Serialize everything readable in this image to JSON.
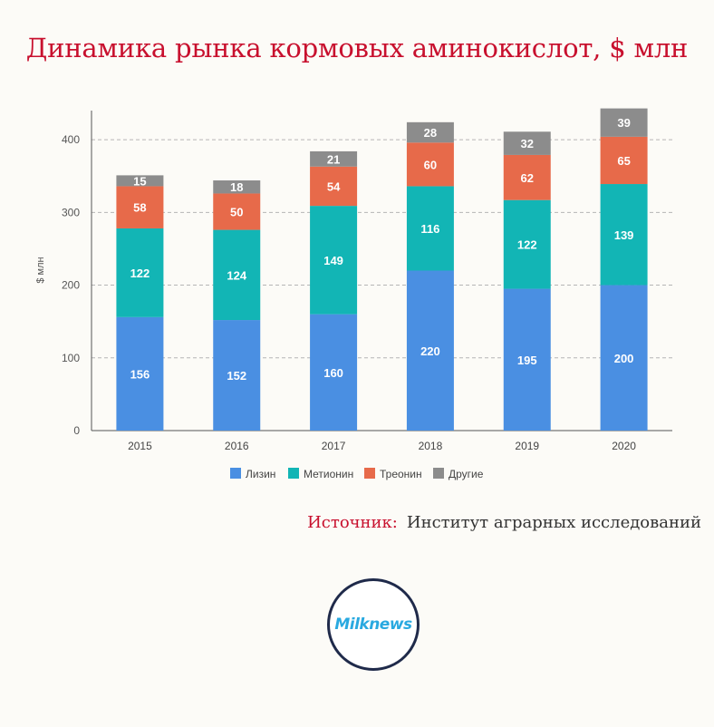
{
  "chart_data": {
    "type": "bar",
    "stacked": true,
    "title": "Динамика рынка кормовых аминокислот, $ млн",
    "ylabel": "$ млн",
    "xlabel": "",
    "ylim": [
      0,
      440
    ],
    "yticks": [
      0,
      100,
      200,
      300,
      400
    ],
    "grid": true,
    "legend_position": "bottom",
    "categories": [
      "2015",
      "2016",
      "2017",
      "2018",
      "2019",
      "2020"
    ],
    "series": [
      {
        "name": "Лизин",
        "color": "#4a8fe2",
        "values": [
          156,
          152,
          160,
          220,
          195,
          200
        ]
      },
      {
        "name": "Метионин",
        "color": "#12b5b5",
        "values": [
          122,
          124,
          149,
          116,
          122,
          139
        ]
      },
      {
        "name": "Треонин",
        "color": "#e76a4a",
        "values": [
          58,
          50,
          54,
          60,
          62,
          65
        ]
      },
      {
        "name": "Другие",
        "color": "#8c8c8c",
        "values": [
          15,
          18,
          21,
          28,
          32,
          39
        ]
      }
    ]
  },
  "source": {
    "label": "Источник:",
    "text": "Институт аграрных исследований"
  },
  "logo": {
    "text": "Milknews"
  }
}
